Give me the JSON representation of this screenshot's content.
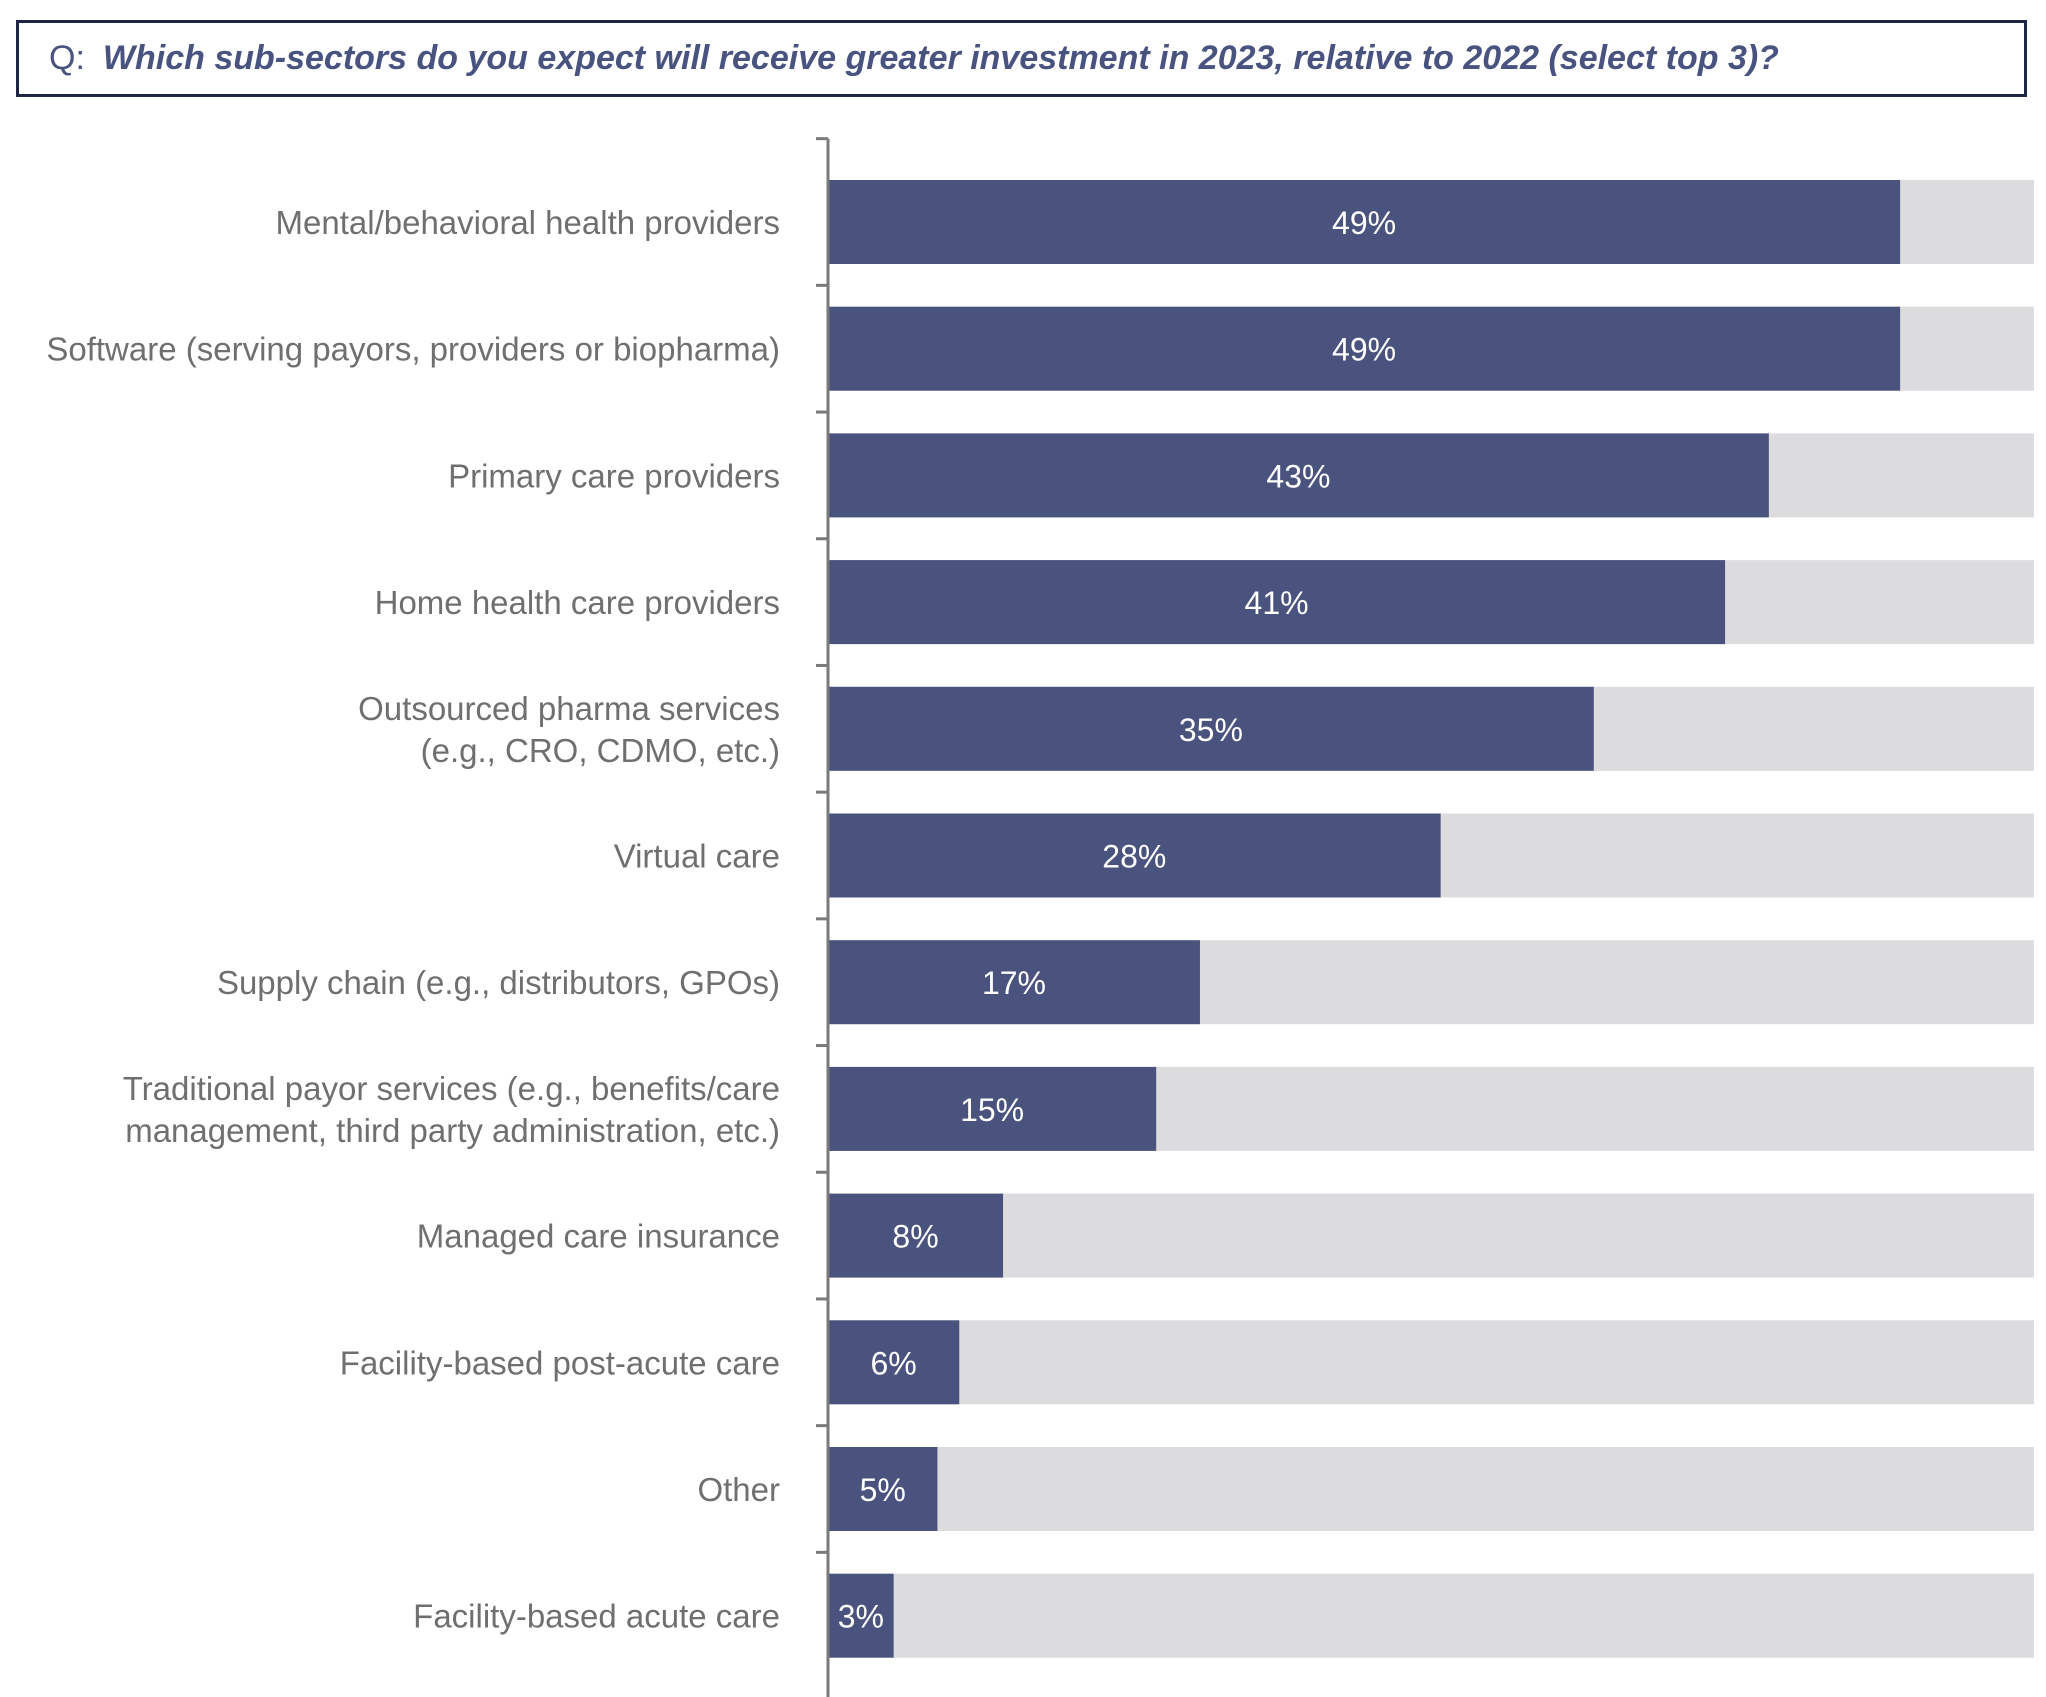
{
  "question": {
    "prefix": "Q:",
    "text": "Which sub-sectors do you expect will receive greater investment in 2023, relative to 2022 (select top 3)?"
  },
  "colors": {
    "bar": "#4a537e",
    "track": "#dcdcde",
    "axis": "#7a7a7a",
    "label": "#6f6f6f",
    "value_label": "#ffffff",
    "question": "#495380",
    "border": "#1f2544"
  },
  "chart_data": {
    "type": "bar",
    "orientation": "horizontal",
    "xlim": [
      0,
      55
    ],
    "grid": false,
    "legend": "none",
    "categories": [
      [
        "Mental/behavioral health providers"
      ],
      [
        "Software (serving payors, providers or biopharma)"
      ],
      [
        "Primary care providers"
      ],
      [
        "Home health care providers"
      ],
      [
        "Outsourced pharma services",
        "(e.g., CRO, CDMO, etc.)"
      ],
      [
        "Virtual care"
      ],
      [
        "Supply chain (e.g., distributors, GPOs)"
      ],
      [
        "Traditional payor services (e.g., benefits/care",
        "management, third party administration, etc.)"
      ],
      [
        "Managed care insurance"
      ],
      [
        "Facility-based post-acute care"
      ],
      [
        "Other"
      ],
      [
        "Facility-based acute care"
      ]
    ],
    "values": [
      49,
      49,
      43,
      41,
      35,
      28,
      17,
      15,
      8,
      6,
      5,
      3
    ],
    "value_labels": [
      "49%",
      "49%",
      "43%",
      "41%",
      "35%",
      "28%",
      "17%",
      "15%",
      "8%",
      "6%",
      "5%",
      "3%"
    ]
  }
}
